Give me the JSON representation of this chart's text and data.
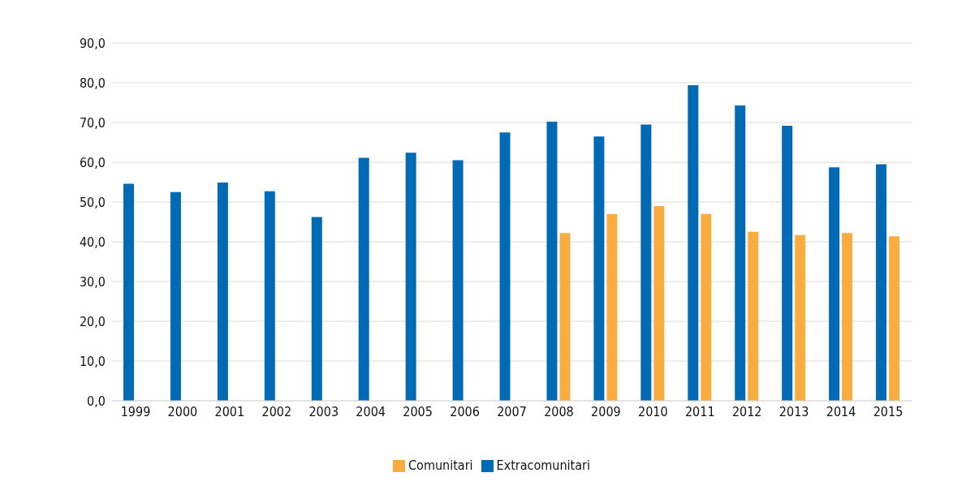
{
  "chart_data": {
    "type": "bar",
    "categories": [
      "1999",
      "2000",
      "2001",
      "2002",
      "2003",
      "2004",
      "2005",
      "2006",
      "2007",
      "2008",
      "2009",
      "2010",
      "2011",
      "2012",
      "2013",
      "2014",
      "2015"
    ],
    "series": [
      {
        "name": "Extracomunitari",
        "color": "#006ab4",
        "values": [
          54.6,
          52.5,
          54.9,
          52.7,
          46.2,
          61.1,
          62.4,
          60.5,
          67.5,
          70.2,
          66.5,
          69.5,
          79.4,
          74.3,
          69.2,
          58.7,
          59.5
        ]
      },
      {
        "name": "Comunitari",
        "color": "#f9ac3f",
        "values": [
          null,
          null,
          null,
          null,
          null,
          null,
          null,
          null,
          null,
          42.2,
          47.0,
          49.0,
          47.0,
          42.5,
          41.7,
          42.2,
          41.4
        ]
      }
    ],
    "ylim": [
      0,
      90
    ],
    "yticks": [
      {
        "value": 0,
        "label": "0,0"
      },
      {
        "value": 10,
        "label": "10,0"
      },
      {
        "value": 20,
        "label": "20,0"
      },
      {
        "value": 30,
        "label": "30,0"
      },
      {
        "value": 40,
        "label": "40,0"
      },
      {
        "value": 50,
        "label": "50,0"
      },
      {
        "value": 60,
        "label": "60,0"
      },
      {
        "value": 70,
        "label": "70,0"
      },
      {
        "value": 80,
        "label": "80,0"
      },
      {
        "value": 90,
        "label": "90,0"
      }
    ],
    "grid": "y",
    "legend": "bottom"
  }
}
